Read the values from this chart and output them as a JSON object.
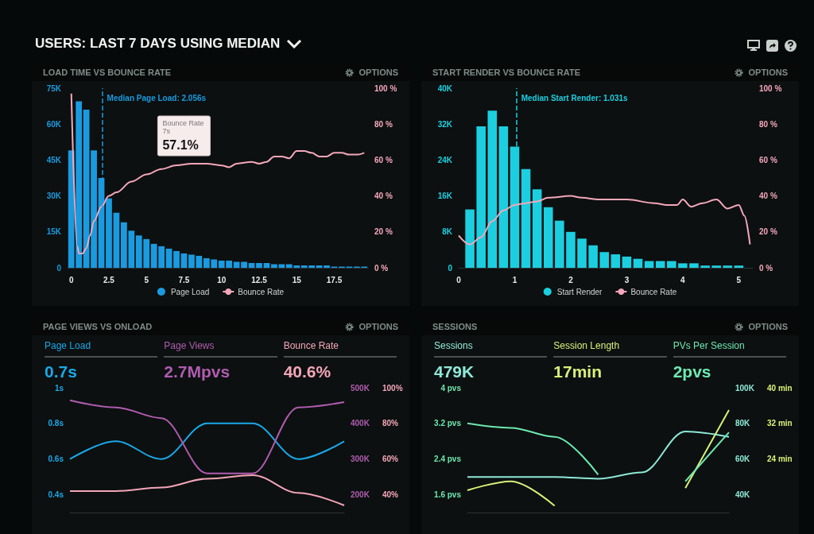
{
  "chart_data": [
    {
      "type": "bar",
      "title": "LOAD TIME VS BOUNCE RATE",
      "annotations": [
        "USERS: LAST 7 DAYS USING MEDIAN",
        "OPTIONS",
        "Bounce Rate\n7s\n57.1%"
      ],
      "xlim": [
        -0.25,
        19.75
      ],
      "xticks": [
        0,
        2.5,
        5,
        7.5,
        10,
        12.5,
        15,
        17.5
      ],
      "ylim": [
        0,
        75000
      ],
      "yticks": [
        0,
        {
          "value": 15000,
          "label": "15K"
        },
        {
          "value": 30000,
          "label": "30K"
        },
        {
          "value": 45000,
          "label": "45K"
        },
        {
          "value": 60000,
          "label": "60K"
        },
        {
          "value": 75000,
          "label": "75K"
        }
      ],
      "y2lim": [
        0,
        100
      ],
      "y2ticks": [
        {
          "value": 0,
          "label": "0 %"
        },
        {
          "value": 20,
          "label": "20 %"
        },
        {
          "value": 40,
          "label": "40 %"
        },
        {
          "value": 60,
          "label": "60 %"
        },
        {
          "value": 80,
          "label": "80 %"
        },
        {
          "value": 100,
          "label": "100 %"
        }
      ],
      "legend": "bottom",
      "ref_lines": [
        {
          "axis": "x",
          "value": 2.056,
          "label": "Median Page Load: 2.056s",
          "color": "#1a9be0",
          "line_style": "dashed"
        }
      ],
      "series": [
        {
          "name": "Page Load",
          "type": "bar",
          "color": "#1a9be0",
          "x": [
            0,
            0.5,
            1,
            1.5,
            2,
            2.5,
            3,
            3.5,
            4,
            4.5,
            5,
            5.5,
            6,
            6.5,
            7,
            7.5,
            8,
            8.5,
            9,
            9.5,
            10,
            10.5,
            11,
            11.5,
            12,
            12.5,
            13,
            13.5,
            14,
            14.5,
            15,
            15.5,
            16,
            16.5,
            17,
            17.5,
            18,
            18.5,
            19,
            19.5
          ],
          "values": [
            49000,
            69500,
            66000,
            49000,
            37500,
            29000,
            23000,
            19000,
            15500,
            13500,
            12000,
            10000,
            9000,
            8000,
            7000,
            6000,
            5500,
            5000,
            4000,
            3500,
            3000,
            3000,
            2500,
            2500,
            2000,
            2000,
            2000,
            1500,
            1500,
            1500,
            1000,
            1000,
            1000,
            1000,
            1000,
            500,
            500,
            500,
            500,
            500
          ]
        },
        {
          "name": "Bounce Rate",
          "type": "line",
          "axis": "y2",
          "color": "#f4a7b9",
          "x": [
            0,
            0.4,
            0.5,
            0.75,
            1,
            1.25,
            1.5,
            2,
            2.5,
            3,
            4,
            5,
            6,
            7,
            8,
            9,
            10,
            10.5,
            11,
            12,
            12.5,
            13,
            13.5,
            14,
            14.5,
            15,
            15.5,
            16,
            16.5,
            17,
            17.5,
            18,
            18.5,
            19,
            19.5
          ],
          "values": [
            97,
            12,
            8,
            8,
            11,
            18,
            26,
            34,
            40,
            42,
            48,
            52,
            55,
            57.1,
            58,
            58,
            57,
            56,
            58,
            59,
            58,
            59,
            62,
            62,
            61,
            65,
            65,
            64,
            62,
            62,
            64,
            64,
            63,
            63,
            64
          ]
        }
      ]
    },
    {
      "type": "bar",
      "title": "START RENDER VS BOUNCE RATE",
      "annotations": [
        "OPTIONS"
      ],
      "xlim": [
        0,
        5.25
      ],
      "xticks": [
        0,
        1,
        2,
        3,
        4,
        5
      ],
      "ylim": [
        0,
        40000
      ],
      "yticks": [
        0,
        {
          "value": 8000,
          "label": "8K"
        },
        {
          "value": 16000,
          "label": "16K"
        },
        {
          "value": 24000,
          "label": "24K"
        },
        {
          "value": 32000,
          "label": "32K"
        },
        {
          "value": 40000,
          "label": "40K"
        }
      ],
      "y2lim": [
        0,
        100
      ],
      "y2ticks": [
        {
          "value": 0,
          "label": "0 %"
        },
        {
          "value": 20,
          "label": "20 %"
        },
        {
          "value": 40,
          "label": "40 %"
        },
        {
          "value": 60,
          "label": "60 %"
        },
        {
          "value": 80,
          "label": "80 %"
        },
        {
          "value": 100,
          "label": "100 %"
        }
      ],
      "legend": "bottom",
      "ref_lines": [
        {
          "axis": "x",
          "value": 1.031,
          "label": "Median Start Render: 1.031s",
          "color": "#1ccfe0",
          "line_style": "dashed"
        }
      ],
      "series": [
        {
          "name": "Start Render",
          "type": "bar",
          "color": "#1ccfe0",
          "x": [
            0.2,
            0.4,
            0.6,
            0.8,
            1,
            1.2,
            1.4,
            1.6,
            1.8,
            2,
            2.2,
            2.4,
            2.6,
            2.8,
            3,
            3.2,
            3.4,
            3.6,
            3.8,
            4,
            4.2,
            4.4,
            4.6,
            4.8,
            5
          ],
          "values": [
            13000,
            31500,
            35000,
            31500,
            27000,
            22000,
            17500,
            13500,
            10500,
            8000,
            6500,
            5000,
            3500,
            3000,
            2500,
            2000,
            1500,
            1500,
            1500,
            1000,
            1000,
            500,
            500,
            500,
            500
          ]
        },
        {
          "name": "Bounce Rate",
          "type": "line",
          "axis": "y2",
          "color": "#f4a7b9",
          "x": [
            0,
            0.2,
            0.4,
            0.6,
            0.8,
            1,
            1.2,
            1.4,
            1.6,
            2,
            2.2,
            2.5,
            3,
            3.5,
            3.7,
            3.9,
            4,
            4.15,
            4.35,
            4.6,
            4.8,
            5,
            5.1,
            5.2
          ],
          "values": [
            18,
            13,
            17,
            26,
            32,
            35,
            36,
            37,
            39,
            40,
            39,
            38,
            38,
            36,
            35,
            35,
            38,
            34,
            36,
            38,
            33,
            35,
            29,
            13
          ]
        }
      ]
    },
    {
      "type": "line",
      "title": "PAGE VIEWS VS ONLOAD",
      "annotations": [
        "OPTIONS",
        "0.7s",
        "2.7Mpvs",
        "40.6%"
      ],
      "categories": [
        null,
        null,
        null,
        null,
        null,
        null,
        null
      ],
      "ylim": [
        0.3,
        1
      ],
      "yticks": [
        {
          "value": 0.4,
          "label": "0.4s"
        },
        {
          "value": 0.6,
          "label": "0.6s"
        },
        {
          "value": 0.8,
          "label": "0.8s"
        },
        {
          "value": 1,
          "label": "1s"
        }
      ],
      "y2lim": [
        150000,
        500000
      ],
      "y2ticks": [
        {
          "value": 200000,
          "label": "200K"
        },
        {
          "value": 300000,
          "label": "300K"
        },
        {
          "value": 400000,
          "label": "400K"
        },
        {
          "value": 500000,
          "label": "500K"
        }
      ],
      "y3lim": [
        30,
        100
      ],
      "y3ticks": [
        {
          "value": 40,
          "label": "40%"
        },
        {
          "value": 60,
          "label": "60%"
        },
        {
          "value": 80,
          "label": "80%"
        },
        {
          "value": 100,
          "label": "100%"
        }
      ],
      "series": [
        {
          "name": "Page Load",
          "color": "#1aa8e8",
          "values": [
            0.6,
            0.7,
            0.6,
            0.8,
            0.8,
            0.6,
            0.7
          ]
        },
        {
          "name": "Page Views",
          "axis": "y2",
          "color": "#b05cb0",
          "values": [
            465000,
            445000,
            415000,
            260000,
            260000,
            445000,
            460000
          ]
        },
        {
          "name": "Bounce Rate",
          "axis": "y3",
          "color": "#f4a6b8",
          "values": [
            42,
            42,
            44,
            49,
            51,
            41,
            34
          ]
        }
      ]
    },
    {
      "type": "line",
      "title": "SESSIONS",
      "annotations": [
        "OPTIONS",
        "479K",
        "17min",
        "2pvs"
      ],
      "categories": [
        null,
        null,
        null,
        null,
        null,
        null,
        null
      ],
      "ylim": [
        1.2,
        4
      ],
      "yticks": [
        {
          "value": 1.6,
          "label": "1.6 pvs"
        },
        {
          "value": 2.4,
          "label": "2.4 pvs"
        },
        {
          "value": 3.2,
          "label": "3.2 pvs"
        },
        {
          "value": 4,
          "label": "4 pvs"
        }
      ],
      "y2lim": [
        30000,
        100000
      ],
      "y2ticks": [
        {
          "value": 40000,
          "label": "40K"
        },
        {
          "value": 60000,
          "label": "60K"
        },
        {
          "value": 80000,
          "label": "80K"
        },
        {
          "value": 100000,
          "label": "100K"
        }
      ],
      "y3lim": [
        12,
        40
      ],
      "y3ticks": [
        {
          "value": 24,
          "label": "24 min"
        },
        {
          "value": 32,
          "label": "32 min"
        },
        {
          "value": 40,
          "label": "40 min"
        }
      ],
      "series": [
        {
          "name": "Sessions",
          "axis": "y2",
          "color": "#8ee8d8",
          "values": [
            50000,
            50000,
            50000,
            49000,
            52500,
            75500,
            72500
          ]
        },
        {
          "name": "Session Length",
          "axis": "y3",
          "color": "#d8f07a",
          "values": [
            17,
            19,
            13.5,
            null,
            null,
            17.5,
            35
          ]
        },
        {
          "name": "PVs Per Session",
          "color": "#6ee8b0",
          "values": [
            3.2,
            3.1,
            2.9,
            2.05,
            null,
            1.9,
            3.0
          ]
        }
      ]
    }
  ]
}
